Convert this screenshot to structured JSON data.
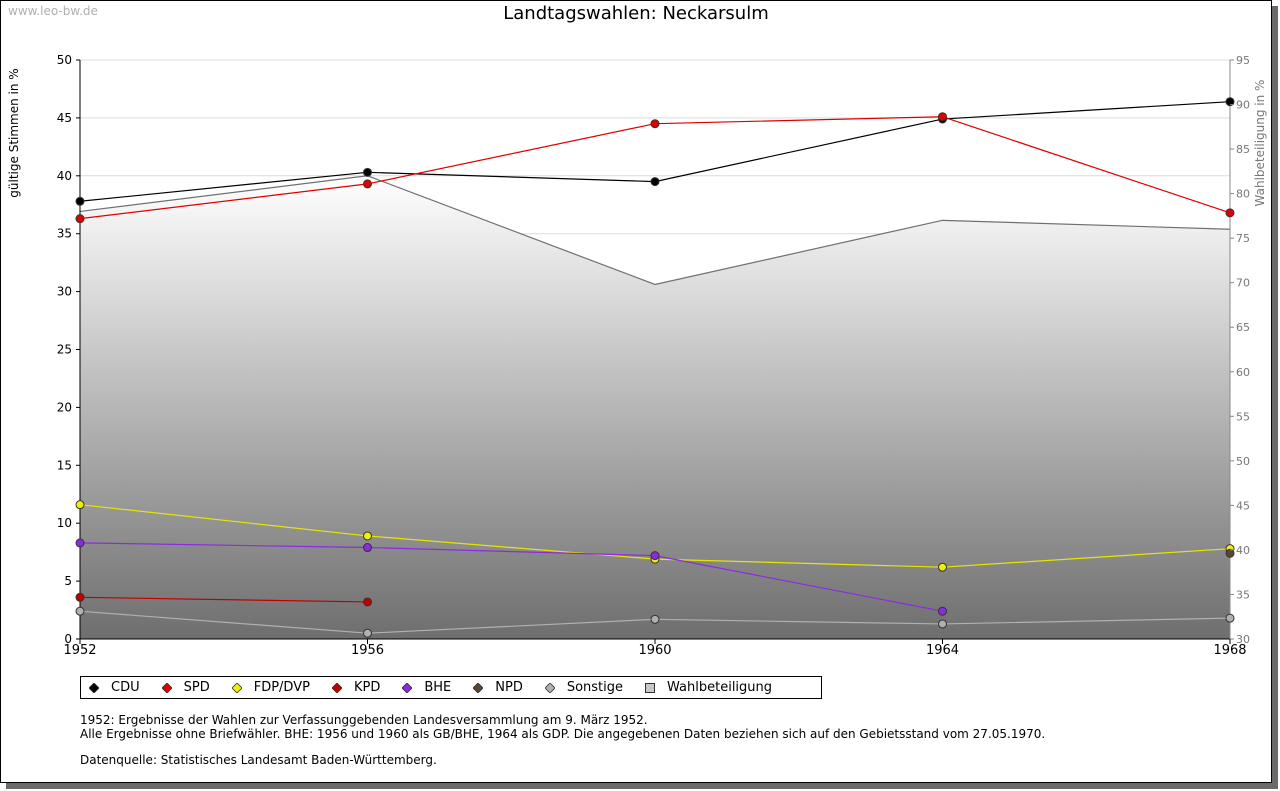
{
  "watermark": "www.leo-bw.de",
  "notes": {
    "line1": "1952: Ergebnisse der Wahlen zur Verfassunggebenden Landesversammlung am 9. März 1952.",
    "line2": "Alle Ergebnisse ohne Briefwähler. BHE: 1956 und 1960 als GB/BHE, 1964 als GDP. Die angegebenen Daten beziehen sich auf den Gebietsstand vom 27.05.1970.",
    "line3": "Datenquelle: Statistisches Landesamt Baden-Württemberg."
  },
  "chart_data": {
    "type": "line",
    "title": "Landtagswahlen: Neckarsulm",
    "ylabel": "gültige Stimmen in %",
    "y2label": "Wahlbeteiligung in %",
    "x": [
      "1952",
      "1956",
      "1960",
      "1964",
      "1968"
    ],
    "ylim": [
      0,
      50
    ],
    "yticks": [
      "0",
      "5",
      "10",
      "15",
      "20",
      "25",
      "30",
      "35",
      "40",
      "45",
      "50"
    ],
    "y2lim": [
      30,
      95
    ],
    "y2ticks": [
      "30",
      "35",
      "40",
      "45",
      "50",
      "55",
      "60",
      "65",
      "70",
      "75",
      "80",
      "85",
      "90",
      "95"
    ],
    "grid": true,
    "legend_position": "bottom-left",
    "series": [
      {
        "name": "CDU",
        "color": "#000000",
        "values": [
          37.8,
          40.3,
          39.5,
          44.9,
          46.4
        ]
      },
      {
        "name": "SPD",
        "color": "#e00000",
        "values": [
          36.3,
          39.3,
          44.5,
          45.1,
          36.8
        ]
      },
      {
        "name": "FDP/DVP",
        "color": "#f0f000",
        "values": [
          11.6,
          8.9,
          6.9,
          6.2,
          7.8
        ]
      },
      {
        "name": "KPD",
        "color": "#c00000",
        "values": [
          3.6,
          3.2,
          null,
          null,
          null
        ]
      },
      {
        "name": "BHE",
        "color": "#8a2be2",
        "values": [
          8.3,
          7.9,
          7.2,
          2.4,
          null
        ]
      },
      {
        "name": "NPD",
        "color": "#5a4632",
        "values": [
          null,
          null,
          null,
          null,
          7.4
        ]
      },
      {
        "name": "Sonstige",
        "color": "#b0b0b0",
        "values": [
          2.4,
          0.5,
          1.7,
          1.3,
          1.8
        ]
      }
    ],
    "area": {
      "name": "Wahlbeteiligung",
      "axis": "right",
      "values": [
        78.0,
        82.0,
        69.8,
        77.0,
        76.0
      ]
    }
  }
}
